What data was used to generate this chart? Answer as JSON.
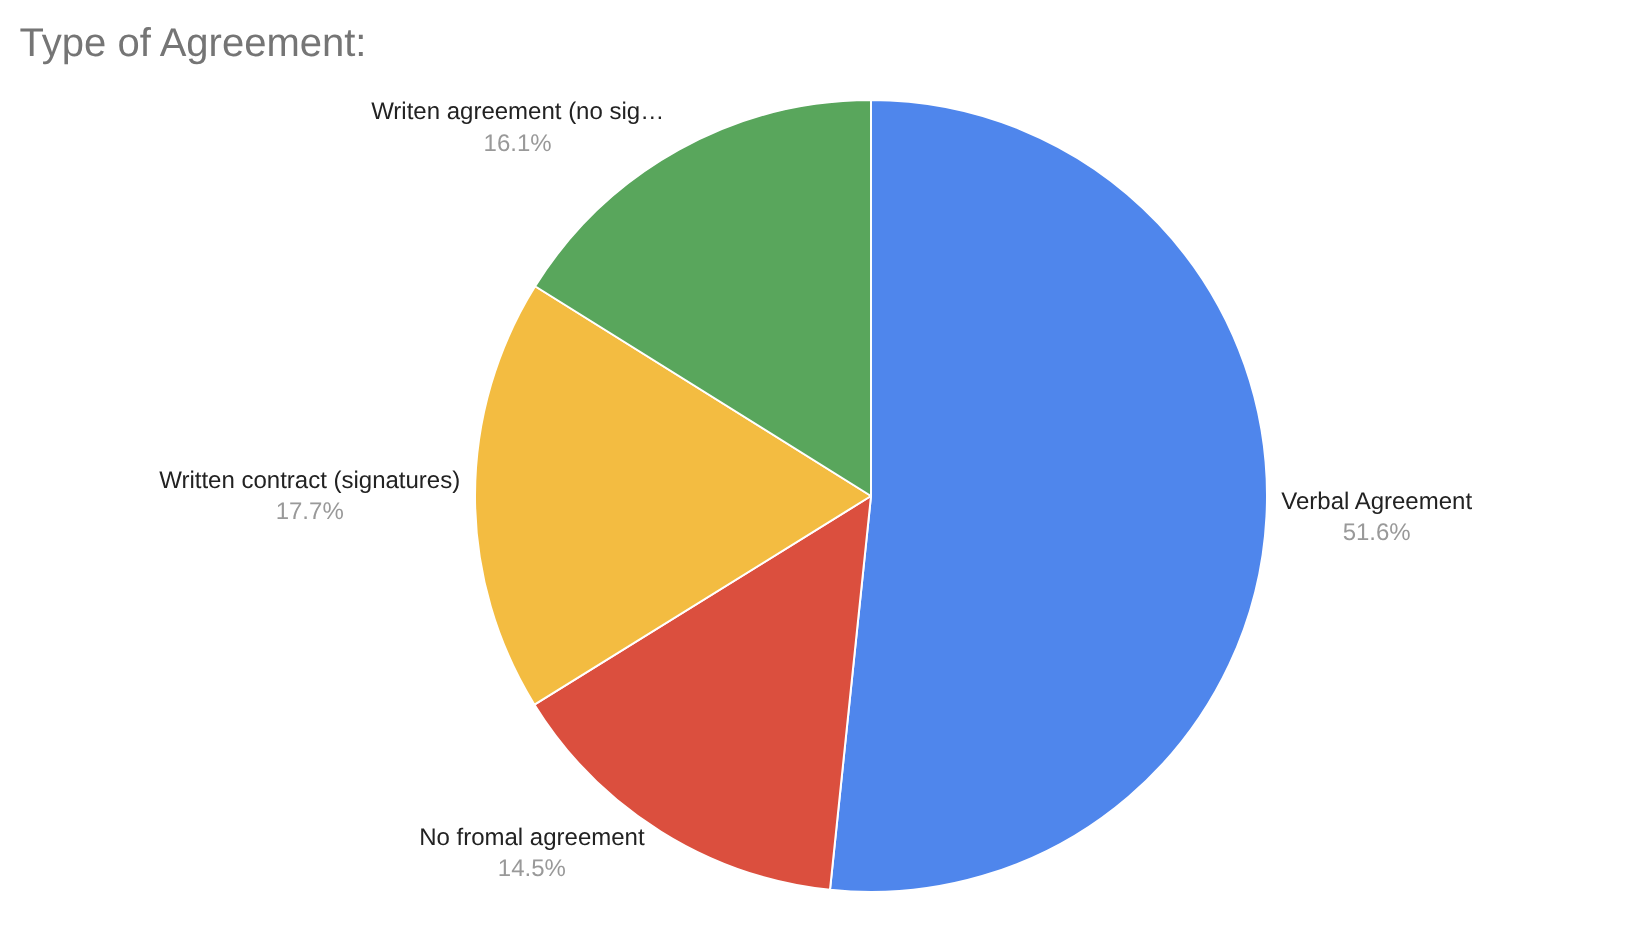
{
  "chart_data": {
    "type": "pie",
    "title": "Type of Agreement:",
    "categories": [
      "Verbal Agreement",
      "No fromal agreement",
      "Written contract (signatures)",
      "Writen agreement (no sig…"
    ],
    "values": [
      51.6,
      14.5,
      17.7,
      16.1
    ],
    "value_labels": [
      "51.6%",
      "14.5%",
      "17.7%",
      "16.1%"
    ],
    "colors": [
      "#4f86ec",
      "#db4f3e",
      "#f3bc41",
      "#59a65c"
    ],
    "legend": false
  }
}
